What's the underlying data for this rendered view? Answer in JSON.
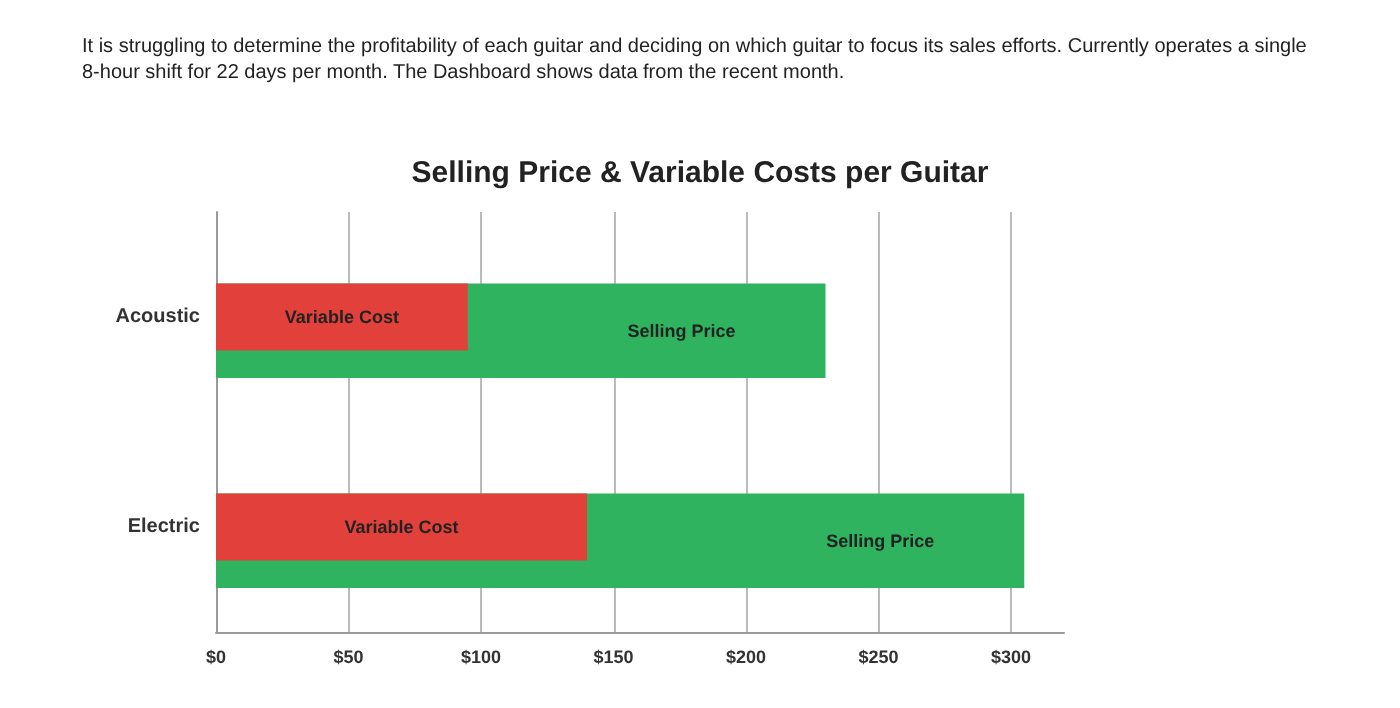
{
  "chart_data": {
    "type": "bar",
    "orientation": "horizontal",
    "title": "Selling Price & Variable Costs per Guitar",
    "annotations": [
      "It is struggling to determine the profitability of each guitar and deciding on which guitar to focus its sales efforts. Currently operates a single 8-hour shift for 22 days per month. The Dashboard shows data from the recent month."
    ],
    "categories": [
      "Acoustic",
      "Electric"
    ],
    "series": [
      {
        "name": "Selling Price",
        "color": "#2fb35f",
        "values": [
          230,
          305
        ]
      },
      {
        "name": "Variable Cost",
        "color": "#e2413b",
        "values": [
          95,
          140
        ]
      }
    ],
    "xlim": [
      0,
      320
    ],
    "xticks": [
      {
        "value": 0,
        "label": "$0"
      },
      {
        "value": 50,
        "label": "$50"
      },
      {
        "value": 100,
        "label": "$100"
      },
      {
        "value": 150,
        "label": "$150"
      },
      {
        "value": 200,
        "label": "$200"
      },
      {
        "value": 250,
        "label": "$250"
      },
      {
        "value": 300,
        "label": "$300"
      }
    ],
    "grid": "x",
    "legend": false
  }
}
